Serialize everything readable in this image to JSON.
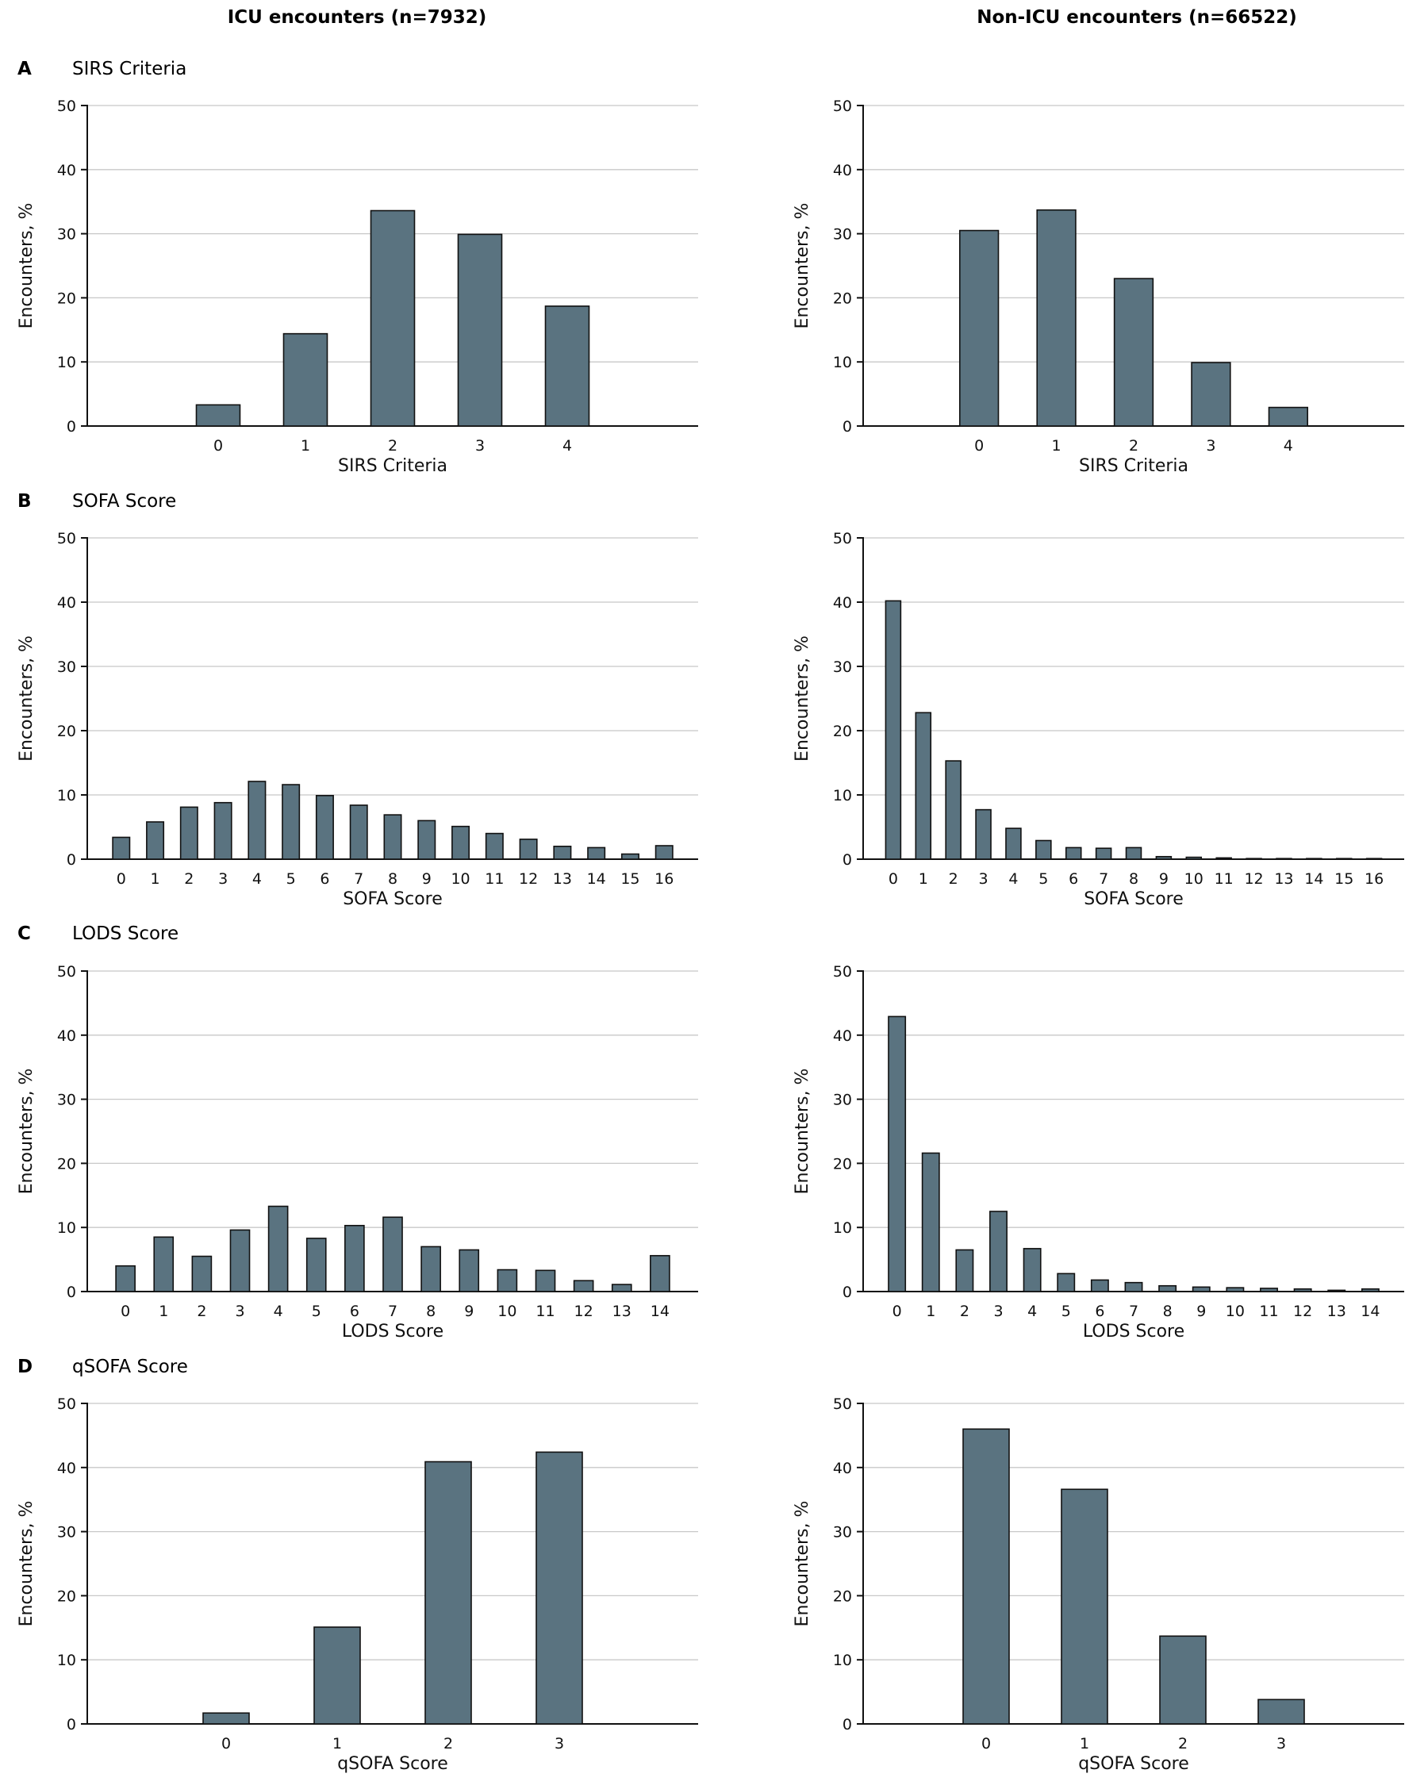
{
  "column_titles": {
    "icu": "ICU encounters (n=7932)",
    "non_icu": "Non-ICU encounters (n=66522)"
  },
  "panels": [
    {
      "letter": "A",
      "title": "SIRS Criteria"
    },
    {
      "letter": "B",
      "title": "SOFA Score"
    },
    {
      "letter": "C",
      "title": "LODS Score"
    },
    {
      "letter": "D",
      "title": "qSOFA Score"
    }
  ],
  "chart_data": [
    {
      "id": "A-icu",
      "type": "bar",
      "group": "ICU encounters (n=7932)",
      "title": "SIRS Criteria",
      "xlabel": "SIRS Criteria",
      "ylabel": "Encounters, %",
      "ylim": [
        0,
        50
      ],
      "yticks": [
        0,
        10,
        20,
        30,
        40,
        50
      ],
      "categories": [
        "0",
        "1",
        "2",
        "3",
        "4"
      ],
      "values": [
        3.3,
        14.4,
        33.6,
        29.9,
        18.7
      ],
      "slots": 7
    },
    {
      "id": "A-non",
      "type": "bar",
      "group": "Non-ICU encounters (n=66522)",
      "title": "SIRS Criteria",
      "xlabel": "SIRS Criteria",
      "ylabel": "Encounters, %",
      "ylim": [
        0,
        50
      ],
      "yticks": [
        0,
        10,
        20,
        30,
        40,
        50
      ],
      "categories": [
        "0",
        "1",
        "2",
        "3",
        "4"
      ],
      "values": [
        30.5,
        33.7,
        23.0,
        9.9,
        2.9
      ],
      "slots": 7
    },
    {
      "id": "B-icu",
      "type": "bar",
      "group": "ICU encounters (n=7932)",
      "title": "SOFA Score",
      "xlabel": "SOFA Score",
      "ylabel": "Encounters, %",
      "ylim": [
        0,
        50
      ],
      "yticks": [
        0,
        10,
        20,
        30,
        40,
        50
      ],
      "categories": [
        "0",
        "1",
        "2",
        "3",
        "4",
        "5",
        "6",
        "7",
        "8",
        "9",
        "10",
        "11",
        "12",
        "13",
        "14",
        "15",
        "16"
      ],
      "values": [
        3.4,
        5.8,
        8.1,
        8.8,
        12.1,
        11.6,
        9.9,
        8.4,
        6.9,
        6.0,
        5.1,
        4.0,
        3.1,
        2.0,
        1.8,
        0.8,
        2.1
      ],
      "slots": 18
    },
    {
      "id": "B-non",
      "type": "bar",
      "group": "Non-ICU encounters (n=66522)",
      "title": "SOFA Score",
      "xlabel": "SOFA Score",
      "ylabel": "Encounters, %",
      "ylim": [
        0,
        50
      ],
      "yticks": [
        0,
        10,
        20,
        30,
        40,
        50
      ],
      "categories": [
        "0",
        "1",
        "2",
        "3",
        "4",
        "5",
        "6",
        "7",
        "8",
        "9",
        "10",
        "11",
        "12",
        "13",
        "14",
        "15",
        "16"
      ],
      "values": [
        40.2,
        22.8,
        15.3,
        7.7,
        4.8,
        2.9,
        1.8,
        1.7,
        1.8,
        0.4,
        0.3,
        0.2,
        0.1,
        0.1,
        0.05,
        0.05,
        0.05
      ],
      "slots": 18
    },
    {
      "id": "C-icu",
      "type": "bar",
      "group": "ICU encounters (n=7932)",
      "title": "LODS Score",
      "xlabel": "LODS Score",
      "ylabel": "Encounters, %",
      "ylim": [
        0,
        50
      ],
      "yticks": [
        0,
        10,
        20,
        30,
        40,
        50
      ],
      "categories": [
        "0",
        "1",
        "2",
        "3",
        "4",
        "5",
        "6",
        "7",
        "8",
        "9",
        "10",
        "11",
        "12",
        "13",
        "14"
      ],
      "values": [
        4.0,
        8.5,
        5.5,
        9.6,
        13.3,
        8.3,
        10.3,
        11.6,
        7.0,
        6.5,
        3.4,
        3.3,
        1.7,
        1.1,
        5.6
      ],
      "slots": 16
    },
    {
      "id": "C-non",
      "type": "bar",
      "group": "Non-ICU encounters (n=66522)",
      "title": "LODS Score",
      "xlabel": "LODS Score",
      "ylabel": "Encounters, %",
      "ylim": [
        0,
        50
      ],
      "yticks": [
        0,
        10,
        20,
        30,
        40,
        50
      ],
      "categories": [
        "0",
        "1",
        "2",
        "3",
        "4",
        "5",
        "6",
        "7",
        "8",
        "9",
        "10",
        "11",
        "12",
        "13",
        "14"
      ],
      "values": [
        42.9,
        21.6,
        6.5,
        12.5,
        6.7,
        2.8,
        1.8,
        1.4,
        0.9,
        0.7,
        0.6,
        0.5,
        0.4,
        0.2,
        0.4
      ],
      "slots": 16
    },
    {
      "id": "D-icu",
      "type": "bar",
      "group": "ICU encounters (n=7932)",
      "title": "qSOFA Score",
      "xlabel": "qSOFA Score",
      "ylabel": "Encounters, %",
      "ylim": [
        0,
        50
      ],
      "yticks": [
        0,
        10,
        20,
        30,
        40,
        50
      ],
      "categories": [
        "0",
        "1",
        "2",
        "3"
      ],
      "values": [
        1.7,
        15.1,
        40.9,
        42.4
      ],
      "slots": 5.5
    },
    {
      "id": "D-non",
      "type": "bar",
      "group": "Non-ICU encounters (n=66522)",
      "title": "qSOFA Score",
      "xlabel": "qSOFA Score",
      "ylabel": "Encounters, %",
      "ylim": [
        0,
        50
      ],
      "yticks": [
        0,
        10,
        20,
        30,
        40,
        50
      ],
      "categories": [
        "0",
        "1",
        "2",
        "3"
      ],
      "values": [
        46.0,
        36.6,
        13.7,
        3.8
      ],
      "slots": 5.5
    }
  ]
}
